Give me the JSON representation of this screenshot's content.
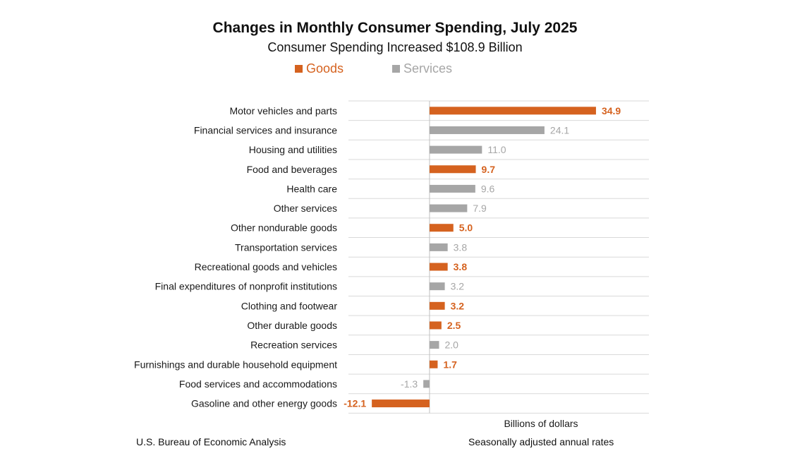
{
  "colors": {
    "goods": "#d5621f",
    "services": "#a6a6a6",
    "grid": "#d9d9d9",
    "axis": "#bfbfbf"
  },
  "chart_data": {
    "type": "bar",
    "orientation": "horizontal",
    "title": "Changes in Monthly Consumer Spending, July 2025",
    "subtitle": "Consumer Spending Increased $108.9 Billion",
    "xlabel": "Billions of dollars",
    "ylabel": "",
    "xlim": [
      -17,
      46
    ],
    "grid": true,
    "legend": [
      {
        "name": "Goods",
        "key": "goods"
      },
      {
        "name": "Services",
        "key": "services"
      }
    ],
    "categories": [
      "Motor vehicles and parts",
      "Financial services and insurance",
      "Housing and utilities",
      "Food and beverages",
      "Health care",
      "Other services",
      "Other nondurable goods",
      "Transportation services",
      "Recreational goods and vehicles",
      "Final expenditures of nonprofit institutions",
      "Clothing and footwear",
      "Other durable goods",
      "Recreation services",
      "Furnishings and durable household equipment",
      "Food services and accommodations",
      "Gasoline and other energy goods"
    ],
    "values": [
      34.9,
      24.1,
      11.0,
      9.7,
      9.6,
      7.9,
      5.0,
      3.8,
      3.8,
      3.2,
      3.2,
      2.5,
      2.0,
      1.7,
      -1.3,
      -12.1
    ],
    "value_labels": [
      "34.9",
      "24.1",
      "11.0",
      "9.7",
      "9.6",
      "7.9",
      "5.0",
      "3.8",
      "3.8",
      "3.2",
      "3.2",
      "2.5",
      "2.0",
      "1.7",
      "-1.3",
      "-12.1"
    ],
    "series_type": [
      "goods",
      "services",
      "services",
      "goods",
      "services",
      "services",
      "goods",
      "services",
      "goods",
      "services",
      "goods",
      "goods",
      "services",
      "goods",
      "services",
      "goods"
    ]
  },
  "footer": {
    "source": "U.S. Bureau of Economic Analysis",
    "note": "Seasonally adjusted annual rates"
  }
}
